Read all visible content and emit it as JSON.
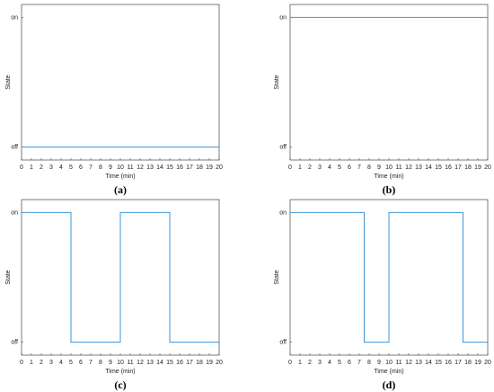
{
  "chart_data": [
    {
      "type": "line",
      "caption": "(a)",
      "xlabel": "Time (min)",
      "ylabel": "State",
      "color": "#3d95d6",
      "x": [
        0,
        20
      ],
      "values": [
        0,
        0
      ],
      "xlim": [
        0,
        20
      ],
      "xticks": [
        0,
        1,
        2,
        3,
        4,
        5,
        6,
        7,
        8,
        9,
        10,
        11,
        12,
        13,
        14,
        15,
        16,
        17,
        18,
        19,
        20
      ],
      "ylim": [
        -0.1,
        1.1
      ],
      "yticks": [
        {
          "value": 0,
          "label": "off"
        },
        {
          "value": 1,
          "label": "on"
        }
      ]
    },
    {
      "type": "line",
      "caption": "(b)",
      "xlabel": "Time (min)",
      "ylabel": "State",
      "color": "#3d95d6",
      "x": [
        0,
        20
      ],
      "values": [
        1,
        1
      ],
      "xlim": [
        0,
        20
      ],
      "xticks": [
        0,
        1,
        2,
        3,
        4,
        5,
        6,
        7,
        8,
        9,
        10,
        11,
        12,
        13,
        14,
        15,
        16,
        17,
        18,
        19,
        20
      ],
      "ylim": [
        -0.1,
        1.1
      ],
      "yticks": [
        {
          "value": 0,
          "label": "off"
        },
        {
          "value": 1,
          "label": "on"
        }
      ]
    },
    {
      "type": "line",
      "caption": "(c)",
      "xlabel": "Time (min)",
      "ylabel": "State",
      "color": "#3d95d6",
      "x": [
        0,
        5,
        5,
        10,
        10,
        15,
        15,
        20
      ],
      "values": [
        1,
        1,
        0,
        0,
        1,
        1,
        0,
        0
      ],
      "xlim": [
        0,
        20
      ],
      "xticks": [
        0,
        1,
        2,
        3,
        4,
        5,
        6,
        7,
        8,
        9,
        10,
        11,
        12,
        13,
        14,
        15,
        16,
        17,
        18,
        19,
        20
      ],
      "ylim": [
        -0.1,
        1.1
      ],
      "yticks": [
        {
          "value": 0,
          "label": "off"
        },
        {
          "value": 1,
          "label": "on"
        }
      ]
    },
    {
      "type": "line",
      "caption": "(d)",
      "xlabel": "Time (min)",
      "ylabel": "State",
      "color": "#3d95d6",
      "x": [
        0,
        7.5,
        7.5,
        10,
        10,
        17.5,
        17.5,
        20
      ],
      "values": [
        1,
        1,
        0,
        0,
        1,
        1,
        0,
        0
      ],
      "xlim": [
        0,
        20
      ],
      "xticks": [
        0,
        1,
        2,
        3,
        4,
        5,
        6,
        7,
        8,
        9,
        10,
        11,
        12,
        13,
        14,
        15,
        16,
        17,
        18,
        19,
        20
      ],
      "ylim": [
        -0.1,
        1.1
      ],
      "yticks": [
        {
          "value": 0,
          "label": "off"
        },
        {
          "value": 1,
          "label": "on"
        }
      ]
    }
  ]
}
